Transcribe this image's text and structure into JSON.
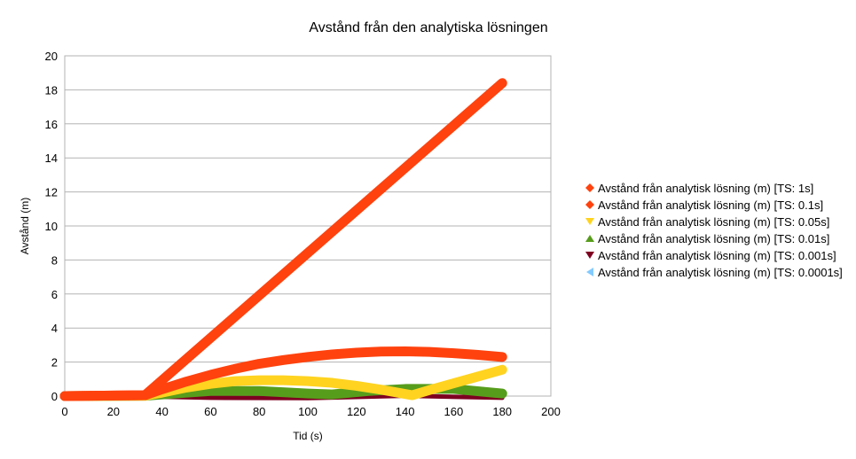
{
  "chart_data": {
    "type": "line",
    "title": "Avstånd från den analytiska lösningen",
    "xlabel": "Tid (s)",
    "ylabel": "Avstånd (m)",
    "xlim": [
      0,
      200
    ],
    "ylim": [
      0,
      20
    ],
    "x_ticks": [
      0,
      20,
      40,
      60,
      80,
      100,
      120,
      140,
      160,
      180,
      200
    ],
    "y_ticks": [
      0,
      2,
      4,
      6,
      8,
      10,
      12,
      14,
      16,
      18,
      20
    ],
    "grid": "horizontal",
    "legend_position": "right",
    "series": [
      {
        "name": "Avstånd från analytisk lösning (m) [TS: 1s]",
        "color": "#ff420e",
        "marker": "diamond",
        "x": [
          0,
          33,
          180
        ],
        "y": [
          0,
          0.05,
          18.4
        ]
      },
      {
        "name": "Avstånd från analytisk lösning (m) [TS: 0.1s]",
        "color": "#ff420e",
        "marker": "diamond",
        "x": [
          0,
          33,
          40,
          50,
          60,
          70,
          80,
          90,
          100,
          110,
          120,
          130,
          140,
          150,
          160,
          170,
          180
        ],
        "y": [
          0,
          0.05,
          0.4,
          0.85,
          1.25,
          1.6,
          1.9,
          2.12,
          2.3,
          2.45,
          2.55,
          2.62,
          2.63,
          2.6,
          2.52,
          2.42,
          2.3
        ]
      },
      {
        "name": "Avstånd från analytisk lösning (m) [TS: 0.05s]",
        "color": "#ffd320",
        "marker": "triangle-down",
        "x": [
          0,
          33,
          40,
          50,
          60,
          70,
          80,
          90,
          100,
          110,
          120,
          130,
          143,
          150,
          160,
          170,
          180
        ],
        "y": [
          0,
          0.02,
          0.2,
          0.5,
          0.72,
          0.88,
          0.93,
          0.93,
          0.88,
          0.78,
          0.6,
          0.38,
          0.05,
          0.35,
          0.75,
          1.15,
          1.55
        ]
      },
      {
        "name": "Avstånd från analytisk lösning (m) [TS: 0.01s]",
        "color": "#579d1c",
        "marker": "triangle-up",
        "x": [
          0,
          33,
          45,
          60,
          80,
          100,
          110,
          125,
          140,
          160,
          180
        ],
        "y": [
          0,
          0.02,
          0.15,
          0.3,
          0.3,
          0.15,
          0.1,
          0.3,
          0.42,
          0.42,
          0.15
        ]
      },
      {
        "name": "Avstånd från analytisk lösning (m) [TS: 0.001s]",
        "color": "#7e0021",
        "marker": "triangle-down",
        "x": [
          0,
          33,
          60,
          100,
          140,
          180
        ],
        "y": [
          0,
          -0.02,
          -0.1,
          -0.12,
          0.02,
          -0.1
        ]
      },
      {
        "name": "Avstånd från analytisk lösning (m) [TS: 0.0001s]",
        "color": "#83caff",
        "marker": "triangle-left",
        "x": [
          0,
          180
        ],
        "y": [
          0,
          0
        ]
      }
    ]
  }
}
